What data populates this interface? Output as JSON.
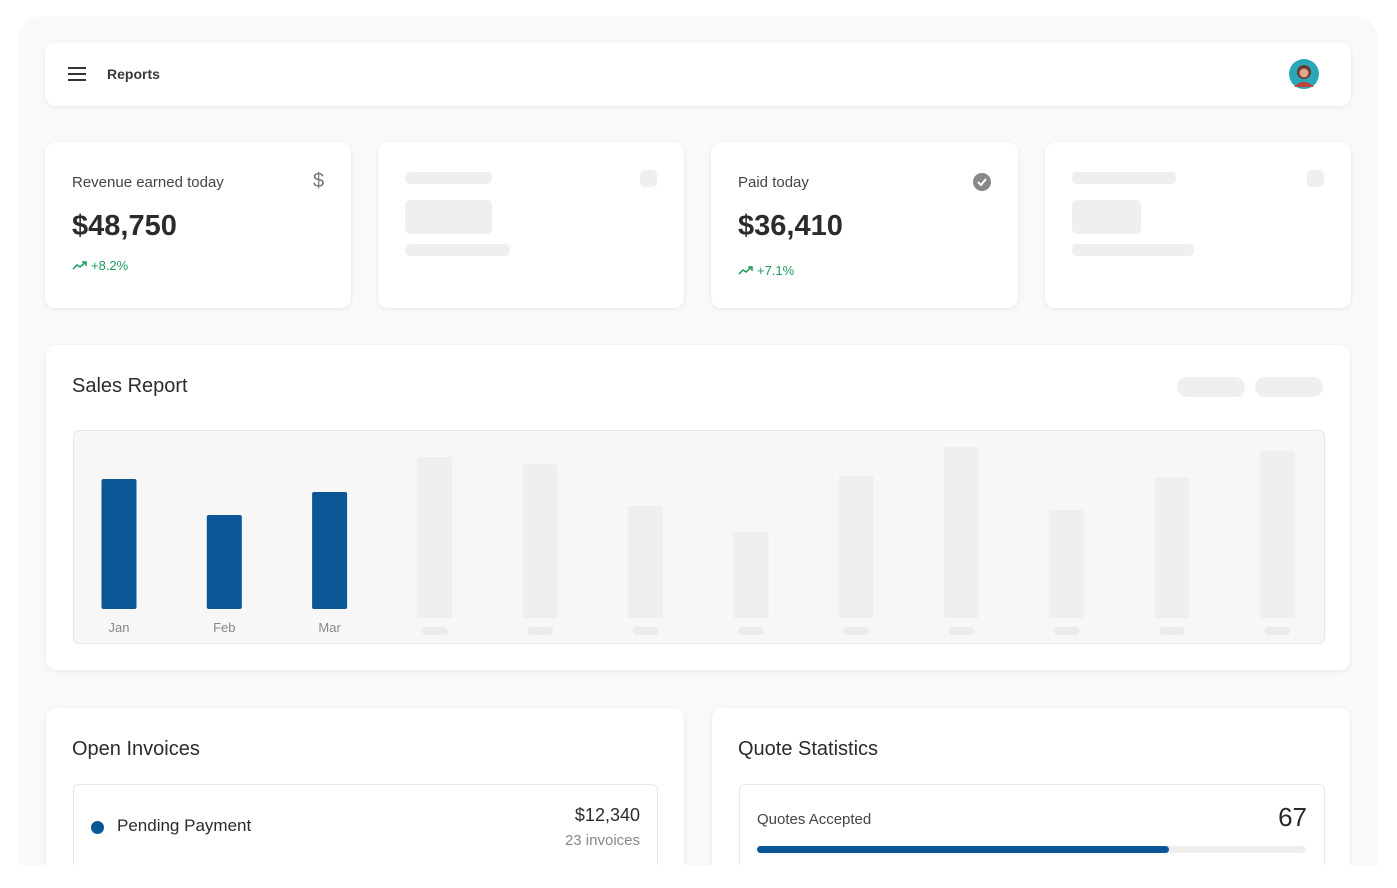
{
  "header": {
    "title": "Reports"
  },
  "cards": [
    {
      "label": "Revenue earned today",
      "value": "$48,750",
      "change": "+8.2%"
    },
    {
      "label": "Paid today",
      "value": "$36,410",
      "change": "+7.1%"
    }
  ],
  "sales_report": {
    "title": "Sales Report",
    "categories": [
      "Jan",
      "Feb",
      "Mar"
    ],
    "values": [
      130,
      94,
      117
    ],
    "color": "#0a5697"
  },
  "open_invoices": {
    "title": "Open Invoices",
    "items": [
      {
        "label": "Pending Payment",
        "amount": "$12,340",
        "count": "23 invoices"
      }
    ]
  },
  "quote_statistics": {
    "title": "Quote Statistics",
    "items": [
      {
        "label": "Quotes Accepted",
        "value": "67",
        "progress": 75
      }
    ]
  }
}
